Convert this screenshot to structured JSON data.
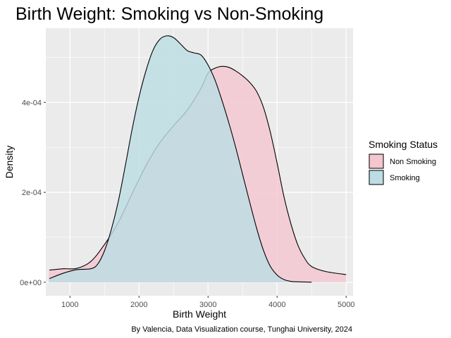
{
  "chart_data": {
    "type": "area",
    "subtype": "density",
    "title": "Birth Weight: Smoking vs Non-Smoking",
    "xlabel": "Birth Weight",
    "ylabel": "Density",
    "caption": "By Valencia, Data Visualization course, Tunghai University, 2024",
    "xlim": [
      650,
      5100
    ],
    "ylim": [
      -3e-05,
      0.000565
    ],
    "x_ticks": [
      1000,
      2000,
      3000,
      4000,
      5000
    ],
    "x_tick_labels": [
      "1000",
      "2000",
      "3000",
      "4000",
      "5000"
    ],
    "y_ticks": [
      0,
      0.0002,
      0.0004
    ],
    "y_tick_labels": [
      "0e+00",
      "2e-04",
      "4e-04"
    ],
    "grid": true,
    "legend": {
      "title": "Smoking Status",
      "position": "right"
    },
    "series": [
      {
        "name": "Non Smoking",
        "color": "#F4C6D0",
        "x": [
          700,
          900,
          1100,
          1300,
          1500,
          1700,
          1900,
          2100,
          2300,
          2500,
          2700,
          2900,
          3000,
          3100,
          3200,
          3300,
          3400,
          3500,
          3600,
          3700,
          3800,
          3900,
          4000,
          4100,
          4200,
          4300,
          4400,
          4500,
          4700,
          5000
        ],
        "y": [
          2.7e-05,
          3e-05,
          3.1e-05,
          4.6e-05,
          8.4e-05,
          0.000133,
          0.000197,
          0.000259,
          0.00031,
          0.000348,
          0.000383,
          0.000432,
          0.000465,
          0.000476,
          0.00048,
          0.000478,
          0.00047,
          0.000459,
          0.000445,
          0.000425,
          0.00039,
          0.000335,
          0.000265,
          0.00019,
          0.00013,
          8.3e-05,
          5.3e-05,
          3.5e-05,
          2.4e-05,
          1.7e-05
        ]
      },
      {
        "name": "Smoking",
        "color": "#BCDDE3",
        "x": [
          700,
          900,
          1100,
          1300,
          1400,
          1500,
          1600,
          1700,
          1800,
          1900,
          2000,
          2100,
          2200,
          2300,
          2400,
          2500,
          2600,
          2700,
          2800,
          2900,
          3000,
          3100,
          3200,
          3300,
          3400,
          3500,
          3600,
          3700,
          3800,
          3900,
          4000,
          4100,
          4200,
          4300,
          4500
        ],
        "y": [
          8e-06,
          2e-05,
          2.8e-05,
          3e-05,
          4e-05,
          7e-05,
          0.000118,
          0.00018,
          0.000258,
          0.00034,
          0.000412,
          0.00047,
          0.000515,
          0.00054,
          0.000548,
          0.000544,
          0.00053,
          0.000515,
          0.00051,
          0.000505,
          0.000483,
          0.00045,
          0.000405,
          0.000355,
          0.0003,
          0.00024,
          0.00018,
          0.000122,
          7.2e-05,
          3.6e-05,
          1.6e-05,
          6e-06,
          2e-06,
          1e-06,
          3e-07
        ]
      }
    ]
  }
}
